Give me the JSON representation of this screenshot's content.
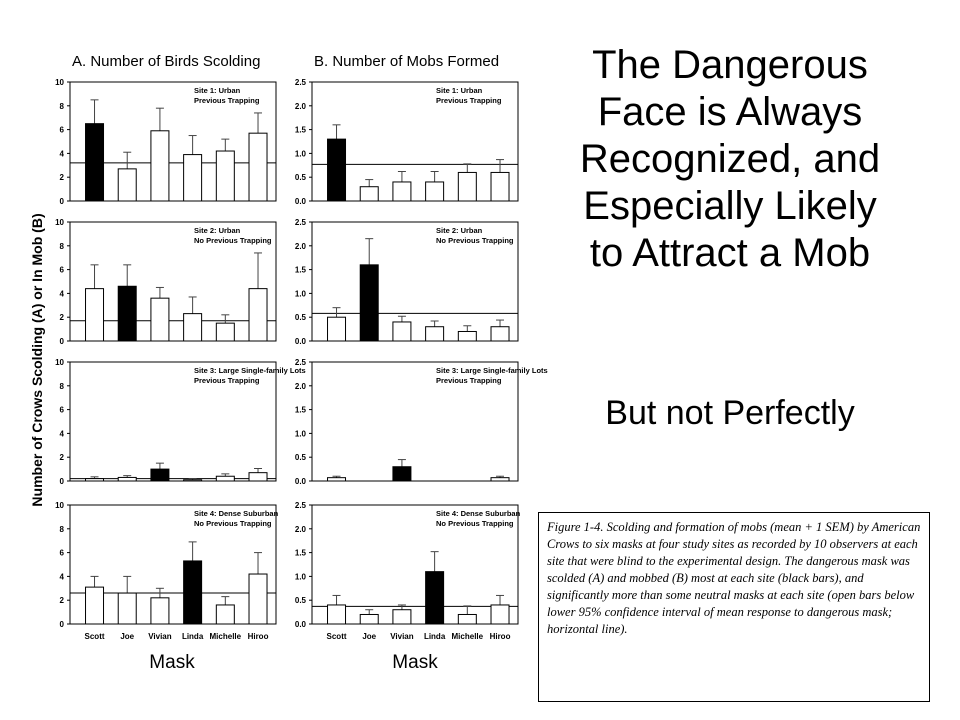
{
  "slide": {
    "title_lines": [
      "The Dangerous",
      "Face is Always",
      "Recognized, and",
      "Especially Likely",
      "to Attract a Mob"
    ],
    "subtitle": "But not Perfectly",
    "caption": "Figure 1-4.  Scolding and formation of mobs (mean + 1 SEM) by American Crows to six masks at four study sites as recorded by 10 observers at each site that were blind to the experimental design.  The dangerous mask was scolded (A) and mobbed (B) most at each site (black bars), and significantly  more than some neutral masks at each site (open bars below lower 95% confidence interval of mean response to dangerous mask; horizontal line)."
  },
  "figure": {
    "ylabel": "Number of Crows Scolding (A) or In Mob (B)",
    "xlabel": "Mask"
  },
  "chart_data": [
    {
      "type": "bar",
      "panel": "A",
      "column_title": "A. Number of Birds Scolding",
      "site_line1": "Site 1: Urban",
      "site_line2": "Previous Trapping",
      "categories": [
        "Scott",
        "Joe",
        "Vivian",
        "Linda",
        "Michelle",
        "Hiroo"
      ],
      "values": [
        6.5,
        2.7,
        5.9,
        3.9,
        4.2,
        5.7
      ],
      "errors": [
        2.0,
        1.4,
        1.9,
        1.6,
        1.0,
        1.7
      ],
      "dangerous": "Scott",
      "ref_line": 3.2,
      "ylim": [
        0,
        10
      ],
      "yticks": [
        0,
        2,
        4,
        6,
        8,
        10
      ],
      "show_tick_labels": false
    },
    {
      "type": "bar",
      "panel": "B",
      "column_title": "B. Number of Mobs Formed",
      "site_line1": "Site 1: Urban",
      "site_line2": "Previous Trapping",
      "categories": [
        "Scott",
        "Joe",
        "Vivian",
        "Linda",
        "Michelle",
        "Hiroo"
      ],
      "values": [
        1.3,
        0.3,
        0.4,
        0.4,
        0.6,
        0.6
      ],
      "errors": [
        0.3,
        0.15,
        0.22,
        0.22,
        0.18,
        0.27
      ],
      "dangerous": "Scott",
      "ref_line": 0.77,
      "ylim": [
        0,
        2.5
      ],
      "yticks": [
        "0.0",
        "0.5",
        "1.0",
        "1.5",
        "2.0",
        "2.5"
      ],
      "show_tick_labels": false
    },
    {
      "type": "bar",
      "panel": "A",
      "site_line1": "Site 2: Urban",
      "site_line2": "No Previous Trapping",
      "categories": [
        "Scott",
        "Joe",
        "Vivian",
        "Linda",
        "Michelle",
        "Hiroo"
      ],
      "values": [
        4.4,
        4.6,
        3.6,
        2.3,
        1.5,
        4.4
      ],
      "errors": [
        2.0,
        1.8,
        0.9,
        1.4,
        0.7,
        3.0
      ],
      "dangerous": "Joe",
      "ref_line": 1.7,
      "ylim": [
        0,
        10
      ],
      "yticks": [
        0,
        2,
        4,
        6,
        8,
        10
      ],
      "show_tick_labels": false
    },
    {
      "type": "bar",
      "panel": "B",
      "site_line1": "Site 2: Urban",
      "site_line2": "No Previous Trapping",
      "categories": [
        "Scott",
        "Joe",
        "Vivian",
        "Linda",
        "Michelle",
        "Hiroo"
      ],
      "values": [
        0.5,
        1.6,
        0.4,
        0.3,
        0.2,
        0.3
      ],
      "errors": [
        0.2,
        0.55,
        0.12,
        0.12,
        0.12,
        0.14
      ],
      "dangerous": "Joe",
      "ref_line": 0.58,
      "ylim": [
        0,
        2.5
      ],
      "yticks": [
        "0.0",
        "0.5",
        "1.0",
        "1.5",
        "2.0",
        "2.5"
      ],
      "show_tick_labels": false
    },
    {
      "type": "bar",
      "panel": "A",
      "site_line1": "Site 3: Large Single-family Lots",
      "site_line2": "Previous Trapping",
      "categories": [
        "Scott",
        "Joe",
        "Vivian",
        "Linda",
        "Michelle",
        "Hiroo"
      ],
      "values": [
        0.2,
        0.3,
        1.0,
        0.1,
        0.4,
        0.7
      ],
      "errors": [
        0.15,
        0.15,
        0.5,
        0.1,
        0.2,
        0.35
      ],
      "dangerous": "Vivian",
      "ref_line": 0.2,
      "ylim": [
        0,
        10
      ],
      "yticks": [
        0,
        2,
        4,
        6,
        8,
        10
      ],
      "show_tick_labels": false
    },
    {
      "type": "bar",
      "panel": "B",
      "site_line1": "Site 3: Large Single-family Lots",
      "site_line2": "Previous Trapping",
      "categories": [
        "Scott",
        "Joe",
        "Vivian",
        "Linda",
        "Michelle",
        "Hiroo"
      ],
      "values": [
        0.07,
        0.0,
        0.3,
        0.0,
        0.0,
        0.07
      ],
      "errors": [
        0.03,
        0.0,
        0.15,
        0.0,
        0.0,
        0.03
      ],
      "dangerous": "Vivian",
      "ref_line": null,
      "ylim": [
        0,
        2.5
      ],
      "yticks": [
        "0.0",
        "0.5",
        "1.0",
        "1.5",
        "2.0",
        "2.5"
      ],
      "show_tick_labels": false
    },
    {
      "type": "bar",
      "panel": "A",
      "site_line1": "Site 4: Dense Suburban",
      "site_line2": "No Previous Trapping",
      "categories": [
        "Scott",
        "Joe",
        "Vivian",
        "Linda",
        "Michelle",
        "Hiroo"
      ],
      "values": [
        3.1,
        2.6,
        2.2,
        5.3,
        1.6,
        4.2
      ],
      "errors": [
        0.9,
        1.4,
        0.8,
        1.6,
        0.7,
        1.8
      ],
      "dangerous": "Linda",
      "ref_line": 2.6,
      "ylim": [
        0,
        10
      ],
      "yticks": [
        0,
        2,
        4,
        6,
        8,
        10
      ],
      "show_tick_labels": true
    },
    {
      "type": "bar",
      "panel": "B",
      "site_line1": "Site 4: Dense Suburban",
      "site_line2": "No Previous Trapping",
      "categories": [
        "Scott",
        "Joe",
        "Vivian",
        "Linda",
        "Michelle",
        "Hiroo"
      ],
      "values": [
        0.4,
        0.2,
        0.3,
        1.1,
        0.2,
        0.4
      ],
      "errors": [
        0.2,
        0.1,
        0.1,
        0.42,
        0.18,
        0.2
      ],
      "dangerous": "Linda",
      "ref_line": 0.37,
      "ylim": [
        0,
        2.5
      ],
      "yticks": [
        "0.0",
        "0.5",
        "1.0",
        "1.5",
        "2.0",
        "2.5"
      ],
      "show_tick_labels": true
    }
  ]
}
